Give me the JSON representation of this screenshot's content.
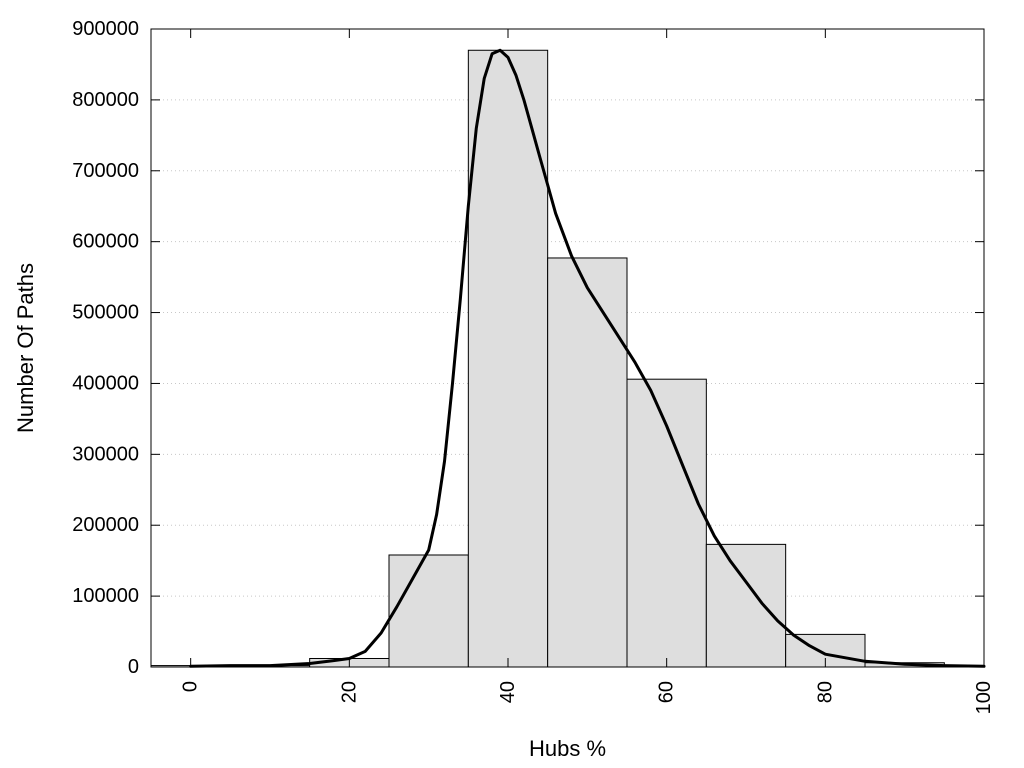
{
  "chart_data": {
    "type": "bar",
    "title": "",
    "xlabel": "Hubs %",
    "ylabel": "Number Of Paths",
    "xlim": [
      -5,
      100
    ],
    "ylim": [
      0,
      900000
    ],
    "grid": "horizontal-dotted",
    "x_ticks": [
      0,
      20,
      40,
      60,
      80,
      100
    ],
    "x_tick_labels": [
      "0",
      "20",
      "40",
      "60",
      "80",
      "100"
    ],
    "y_ticks": [
      0,
      100000,
      200000,
      300000,
      400000,
      500000,
      600000,
      700000,
      800000,
      900000
    ],
    "y_tick_labels": [
      "0",
      "100000",
      "200000",
      "300000",
      "400000",
      "500000",
      "600000",
      "700000",
      "800000",
      "900000"
    ],
    "bins": [
      {
        "x0": -5,
        "x1": 5,
        "value": 2000
      },
      {
        "x0": 5,
        "x1": 15,
        "value": 2000
      },
      {
        "x0": 15,
        "x1": 25,
        "value": 12000
      },
      {
        "x0": 25,
        "x1": 35,
        "value": 158000
      },
      {
        "x0": 35,
        "x1": 45,
        "value": 870000
      },
      {
        "x0": 45,
        "x1": 55,
        "value": 577000
      },
      {
        "x0": 55,
        "x1": 65,
        "value": 406000
      },
      {
        "x0": 65,
        "x1": 75,
        "value": 173000
      },
      {
        "x0": 75,
        "x1": 85,
        "value": 46000
      },
      {
        "x0": 85,
        "x1": 95,
        "value": 6000
      },
      {
        "x0": 95,
        "x1": 100,
        "value": 2000
      }
    ],
    "curve": {
      "x": [
        0,
        5,
        10,
        15,
        18,
        20,
        22,
        24,
        26,
        28,
        30,
        31,
        32,
        33,
        34,
        35,
        36,
        37,
        38,
        39,
        40,
        41,
        42,
        43,
        44,
        45,
        46,
        48,
        50,
        52,
        54,
        56,
        58,
        60,
        62,
        64,
        66,
        68,
        70,
        72,
        74,
        76,
        78,
        80,
        85,
        90,
        95,
        100
      ],
      "y": [
        1000,
        2000,
        2000,
        5000,
        9000,
        12000,
        22000,
        48000,
        85000,
        125000,
        165000,
        215000,
        290000,
        400000,
        520000,
        650000,
        760000,
        830000,
        865000,
        870000,
        860000,
        835000,
        800000,
        760000,
        720000,
        680000,
        640000,
        580000,
        535000,
        500000,
        465000,
        430000,
        390000,
        340000,
        285000,
        230000,
        185000,
        150000,
        120000,
        90000,
        65000,
        45000,
        30000,
        18000,
        8000,
        4000,
        2000,
        1000
      ]
    },
    "colors": {
      "bar_fill": "#dedede",
      "bar_stroke": "#000000",
      "curve": "#000000",
      "grid": "#c8c8c8"
    }
  }
}
